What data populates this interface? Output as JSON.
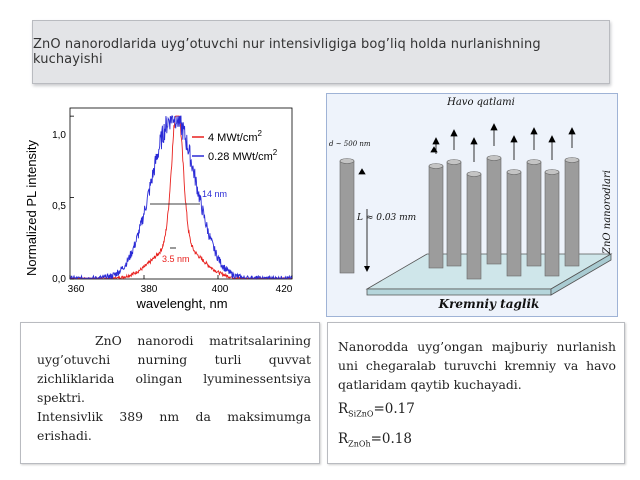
{
  "slide": {
    "title": "ZnO nanorodlarida uyg’otuvchi nur intensivligiga bog’liq holda nurlanishning kuchayishi"
  },
  "chart_data": {
    "type": "line",
    "xlabel": "wavelenght, nm",
    "ylabel": "Normalized PL intensity",
    "xlim": [
      360,
      420
    ],
    "ylim": [
      0,
      1.05
    ],
    "x_ticks": [
      "360",
      "380",
      "400",
      "420"
    ],
    "y_ticks": [
      "0,0",
      "0,5",
      "1,0"
    ],
    "legend_position": "top-right",
    "series": [
      {
        "name": "4 MWt/cm2",
        "color": "#e8211e",
        "center": 389,
        "fwhm": 3.5
      },
      {
        "name": "0.28 MWt/cm2",
        "color": "#2b2bd6",
        "center": 388,
        "fwhm": 14
      }
    ],
    "annotations": [
      "14 nm",
      "3.5 nm"
    ],
    "legend_labels": {
      "s1_main": "4 MWt/cm",
      "s1_sup": "2",
      "s2_main": "0.28 MWt/cm",
      "s2_sup": "2"
    }
  },
  "diagram": {
    "top_label": "Havo qatlami",
    "d_label": "d ~ 500 nm",
    "l_label": "L ≈ 0.03 mm",
    "side_label": "ZnO nanorodlari",
    "bottom_label": "Kremniy taglik"
  },
  "left_caption": {
    "line1": "ZnO nanorodi matritsalarining uyg’otuvchi nurning turli quvvat zichliklarida olingan lyuminessentsiya spektri.",
    "line2": "Intensivlik 389 nm da maksimumga erishadi."
  },
  "right_caption": {
    "text": "Nanorodda uyg’ongan majburiy nurlanish uni chegaralab turuvchi kremniy va havo qatlaridam qaytib kuchayadi.",
    "r1_prefix": "R",
    "r1_sub": "SiZnO",
    "r1_value": "=0.17",
    "r2_prefix": "R",
    "r2_sub": "ZnOh",
    "r2_value": "=0.18"
  }
}
